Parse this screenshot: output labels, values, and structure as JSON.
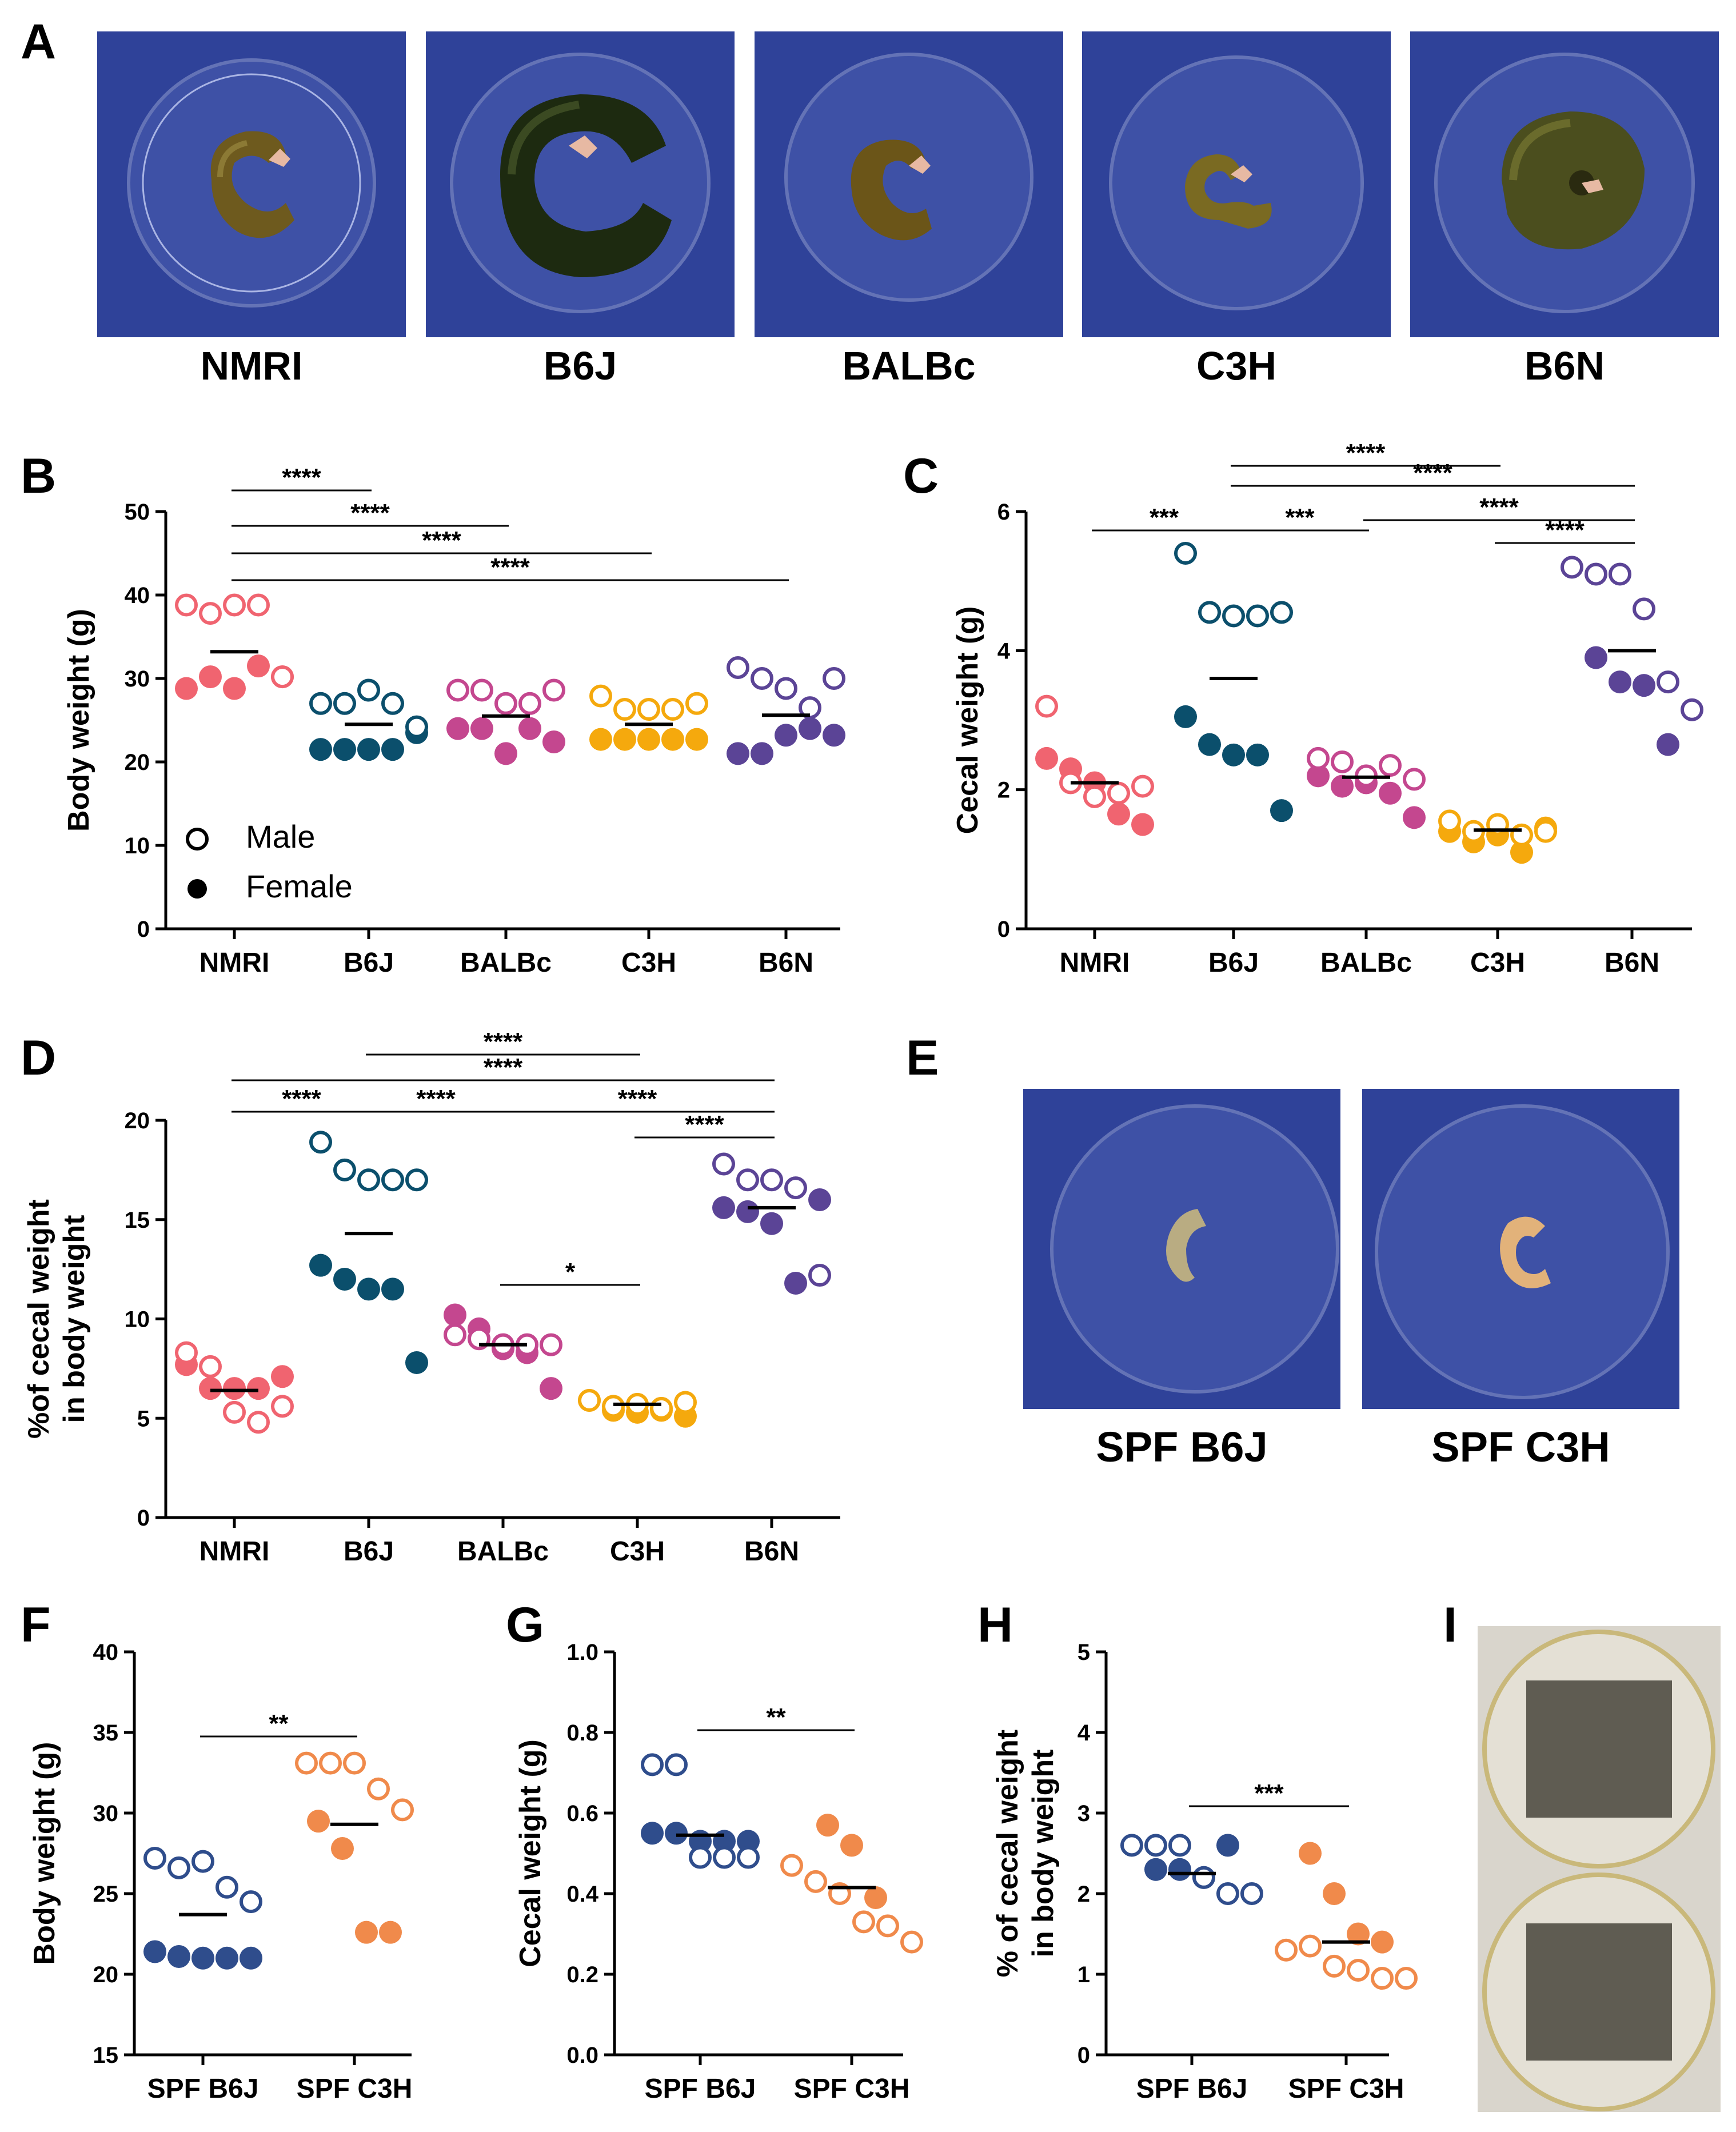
{
  "panels": {
    "A": "A",
    "B": "B",
    "C": "C",
    "D": "D",
    "E": "E",
    "F": "F",
    "G": "G",
    "H": "H",
    "I": "I"
  },
  "panel_a": {
    "photo_labels": [
      "NMRI",
      "B6J",
      "BALBc",
      "C3H",
      "B6N"
    ]
  },
  "panel_e": {
    "photo_labels": [
      "SPF B6J",
      "SPF C3H"
    ]
  },
  "colors": {
    "NMRI": "#f06470",
    "B6J": "#0b4f6c",
    "BALBc": "#c4478f",
    "C3H": "#f5a90d",
    "B6N": "#5b4496",
    "SPF_B6J": "#2f4d8c",
    "SPF_C3H": "#f08a4b",
    "axis": "#000000",
    "background_photo": "#2c3e95"
  },
  "chart_data": [
    {
      "id": "B",
      "type": "scatter",
      "ylabel": "Body weight (g)",
      "xlabel": "",
      "ylim": [
        0,
        50
      ],
      "yticks": [
        "0",
        "10",
        "20",
        "30",
        "40",
        "50"
      ],
      "categories": [
        "NMRI",
        "B6J",
        "BALBc",
        "C3H",
        "B6N"
      ],
      "legend": {
        "male": "Male",
        "female": "Female",
        "placement": "bottom-left"
      },
      "means": [
        33.2,
        24.5,
        25.5,
        24.5,
        25.6
      ],
      "points": [
        {
          "male": [
            38.8,
            37.8,
            38.8,
            38.8,
            30.2
          ],
          "female": [
            28.8,
            30.2,
            28.8,
            31.5,
            30.2
          ]
        },
        {
          "male": [
            27.0,
            27.0,
            28.6,
            27.0,
            24.2
          ],
          "female": [
            21.5,
            21.5,
            21.5,
            21.5,
            23.5
          ]
        },
        {
          "male": [
            28.6,
            28.6,
            27.0,
            27.0,
            28.6
          ],
          "female": [
            24.0,
            24.0,
            21.0,
            24.0,
            22.4
          ]
        },
        {
          "male": [
            27.9,
            26.3,
            26.3,
            26.3,
            27.0
          ],
          "female": [
            22.7,
            22.7,
            22.7,
            22.7,
            22.7
          ]
        },
        {
          "male": [
            31.3,
            30.0,
            28.8,
            26.5,
            30.0
          ],
          "female": [
            21.0,
            21.0,
            23.2,
            24.0,
            23.2
          ]
        }
      ],
      "significance": [
        {
          "from": 0,
          "to": 1,
          "label": "****"
        },
        {
          "from": 0,
          "to": 2,
          "label": "****"
        },
        {
          "from": 0,
          "to": 3,
          "label": "****"
        },
        {
          "from": 0,
          "to": 4,
          "label": "****"
        }
      ]
    },
    {
      "id": "C",
      "type": "scatter",
      "ylabel": "Cecal weight (g)",
      "xlabel": "",
      "ylim": [
        0,
        6
      ],
      "yticks": [
        "0",
        "2",
        "4",
        "6"
      ],
      "categories": [
        "NMRI",
        "B6J",
        "BALBc",
        "C3H",
        "B6N"
      ],
      "means": [
        2.1,
        3.6,
        2.18,
        1.42,
        4.0
      ],
      "points": [
        {
          "male": [
            3.2,
            2.1,
            1.9,
            1.95,
            2.05
          ],
          "female": [
            2.45,
            2.3,
            2.1,
            1.65,
            1.5
          ]
        },
        {
          "male": [
            5.4,
            4.55,
            4.5,
            4.5,
            4.55
          ],
          "female": [
            3.05,
            2.65,
            2.5,
            2.5,
            1.7
          ]
        },
        {
          "male": [
            2.45,
            2.4,
            2.2,
            2.35,
            2.15
          ],
          "female": [
            2.2,
            2.05,
            2.1,
            1.95,
            1.6
          ]
        },
        {
          "male": [
            1.55,
            1.4,
            1.5,
            1.35,
            1.4
          ],
          "female": [
            1.4,
            1.25,
            1.35,
            1.1,
            1.45
          ]
        },
        {
          "male": [
            5.2,
            5.1,
            5.1,
            4.6,
            3.55,
            3.15
          ],
          "female": [
            3.9,
            3.55,
            3.5,
            2.65
          ]
        }
      ],
      "significance": [
        {
          "from": 1,
          "to": 3,
          "label": "****"
        },
        {
          "from": 1,
          "to": 4,
          "label": "****"
        },
        {
          "from": 0,
          "to": 1,
          "label": "***"
        },
        {
          "from": 1,
          "to": 2,
          "label": "***"
        },
        {
          "from": 2,
          "to": 4,
          "label": "****"
        },
        {
          "from": 3,
          "to": 4,
          "label": "****"
        }
      ]
    },
    {
      "id": "D",
      "type": "scatter",
      "ylabel": [
        "%of cecal weight",
        "in body weight"
      ],
      "xlabel": "",
      "ylim": [
        0,
        20
      ],
      "yticks": [
        "0",
        "5",
        "10",
        "15",
        "20"
      ],
      "categories": [
        "NMRI",
        "B6J",
        "BALBc",
        "C3H",
        "B6N"
      ],
      "means": [
        6.4,
        14.3,
        8.7,
        5.7,
        15.6
      ],
      "points": [
        {
          "male": [
            8.3,
            7.6,
            5.3,
            4.8,
            5.6
          ],
          "female": [
            7.7,
            6.5,
            6.5,
            6.5,
            7.1
          ]
        },
        {
          "male": [
            18.9,
            17.5,
            17.0,
            17.0,
            17.0
          ],
          "female": [
            12.7,
            12.0,
            11.5,
            11.5,
            7.8
          ]
        },
        {
          "male": [
            9.2,
            9.0,
            8.7,
            8.7,
            8.7
          ],
          "female": [
            10.2,
            9.5,
            8.5,
            8.3,
            6.5
          ]
        },
        {
          "male": [
            5.9,
            5.6,
            5.7,
            5.5,
            5.8
          ],
          "female": [
            5.9,
            5.4,
            5.3,
            5.4,
            5.1
          ]
        },
        {
          "male": [
            17.8,
            17.0,
            17.0,
            16.6,
            12.2
          ],
          "female": [
            15.6,
            15.4,
            14.8,
            11.8,
            16.0
          ]
        }
      ],
      "significance": [
        {
          "from": 1,
          "to": 3,
          "label": "****"
        },
        {
          "from": 0,
          "to": 4,
          "label": "****"
        },
        {
          "from": 0,
          "to": 1,
          "label": "****"
        },
        {
          "from": 1,
          "to": 2,
          "label": "****"
        },
        {
          "from": 2,
          "to": 4,
          "label": "****"
        },
        {
          "from": 3,
          "to": 4,
          "label": "****"
        },
        {
          "from": 2,
          "to": 3,
          "label": "*"
        }
      ]
    },
    {
      "id": "F",
      "type": "scatter",
      "ylabel": "Body weight (g)",
      "xlabel": "",
      "ylim": [
        15,
        40
      ],
      "yticks": [
        "15",
        "20",
        "25",
        "30",
        "35",
        "40"
      ],
      "categories": [
        "SPF B6J",
        "SPF C3H"
      ],
      "means": [
        23.7,
        29.3
      ],
      "points": [
        {
          "male": [
            27.2,
            26.6,
            27.0,
            25.4,
            24.5
          ],
          "female": [
            21.4,
            21.1,
            21.0,
            21.0,
            21.0
          ]
        },
        {
          "male": [
            33.1,
            33.1,
            33.1,
            31.5,
            30.2
          ],
          "female": [
            29.5,
            27.8,
            22.6,
            22.6
          ]
        }
      ],
      "significance": [
        {
          "from": 0,
          "to": 1,
          "label": "**"
        }
      ]
    },
    {
      "id": "G",
      "type": "scatter",
      "ylabel": "Cecal weight (g)",
      "xlabel": "",
      "ylim": [
        0,
        1
      ],
      "yticks": [
        "0.0",
        "0.2",
        "0.4",
        "0.6",
        "0.8",
        "1.0"
      ],
      "categories": [
        "SPF B6J",
        "SPF C3H"
      ],
      "means": [
        0.545,
        0.415
      ],
      "points": [
        {
          "male": [
            0.72,
            0.72,
            0.49,
            0.49,
            0.49
          ],
          "female": [
            0.55,
            0.55,
            0.53,
            0.53,
            0.53
          ]
        },
        {
          "male": [
            0.47,
            0.43,
            0.4,
            0.33,
            0.32,
            0.28
          ],
          "female": [
            0.57,
            0.52,
            0.39
          ]
        }
      ],
      "significance": [
        {
          "from": 0,
          "to": 1,
          "label": "**"
        }
      ]
    },
    {
      "id": "H",
      "type": "scatter",
      "ylabel": [
        "% of cecal weight",
        "in body weight"
      ],
      "xlabel": "",
      "ylim": [
        0,
        5
      ],
      "yticks": [
        "0",
        "1",
        "2",
        "3",
        "4",
        "5"
      ],
      "categories": [
        "SPF B6J",
        "SPF C3H"
      ],
      "means": [
        2.25,
        1.4
      ],
      "points": [
        {
          "male": [
            2.6,
            2.6,
            2.6,
            2.2,
            2.0,
            2.0
          ],
          "female": [
            2.3,
            2.3,
            2.2,
            2.6
          ]
        },
        {
          "male": [
            1.3,
            1.35,
            1.1,
            1.05,
            0.95,
            0.95
          ],
          "female": [
            2.5,
            2.0,
            1.5,
            1.4
          ]
        }
      ],
      "significance": [
        {
          "from": 0,
          "to": 1,
          "label": "***"
        }
      ]
    }
  ]
}
